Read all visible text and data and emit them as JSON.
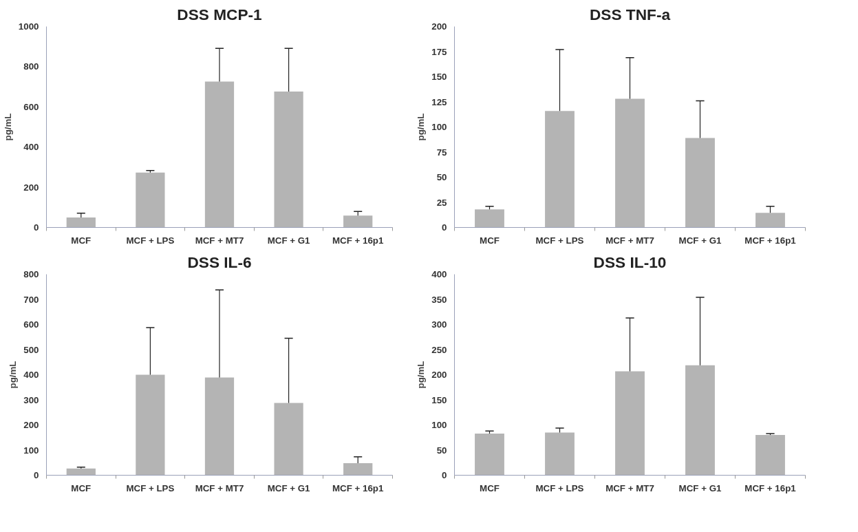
{
  "chart_data": [
    {
      "type": "bar",
      "title": "DSS MCP-1",
      "ylabel": "pg/mL",
      "categories": [
        "MCF",
        "MCF + LPS",
        "MCF + MT7",
        "MCF + G1",
        "MCF + 16p1"
      ],
      "values": [
        50,
        273,
        726,
        676,
        59
      ],
      "errors": [
        [
          50,
          71
        ],
        [
          273,
          283
        ],
        [
          726,
          891
        ],
        [
          676,
          891
        ],
        [
          59,
          80
        ]
      ],
      "color": "#b4b4b4",
      "ylim": [
        0,
        1000
      ],
      "yticks": [
        0,
        200,
        400,
        600,
        800,
        1000
      ],
      "grid": false
    },
    {
      "type": "bar",
      "title": "DSS TNF-a",
      "ylabel": "pg/mL",
      "categories": [
        "MCF",
        "MCF + LPS",
        "MCF + MT7",
        "MCF + G1",
        "MCF + 16p1"
      ],
      "values": [
        18,
        116,
        128,
        89,
        14.5
      ],
      "errors": [
        [
          18,
          21
        ],
        [
          116,
          177
        ],
        [
          128,
          169
        ],
        [
          89,
          126
        ],
        [
          14.5,
          21
        ]
      ],
      "color": "#b4b4b4",
      "ylim": [
        0,
        200
      ],
      "yticks": [
        0,
        25,
        50,
        75,
        100,
        125,
        150,
        175,
        200
      ],
      "grid": false
    },
    {
      "type": "bar",
      "title": "DSS IL-6",
      "ylabel": "pg/mL",
      "categories": [
        "MCF",
        "MCF + LPS",
        "MCF + MT7",
        "MCF + G1",
        "MCF + 16p1"
      ],
      "values": [
        27,
        400,
        389,
        288,
        48
      ],
      "errors": [
        [
          27,
          32
        ],
        [
          400,
          588
        ],
        [
          389,
          738
        ],
        [
          288,
          545
        ],
        [
          48,
          73
        ]
      ],
      "color": "#b4b4b4",
      "ylim": [
        0,
        800
      ],
      "yticks": [
        0,
        100,
        200,
        300,
        400,
        500,
        600,
        700,
        800
      ],
      "grid": false
    },
    {
      "type": "bar",
      "title": "DSS IL-10",
      "ylabel": "pg/mL",
      "categories": [
        "MCF",
        "MCF + LPS",
        "MCF + MT7",
        "MCF + G1",
        "MCF + 16p1"
      ],
      "values": [
        83,
        85,
        207,
        219,
        80
      ],
      "errors": [
        [
          83,
          88
        ],
        [
          85,
          94
        ],
        [
          207,
          313
        ],
        [
          219,
          354
        ],
        [
          80,
          83
        ]
      ],
      "color": "#b4b4b4",
      "ylim": [
        0,
        400
      ],
      "yticks": [
        0,
        50,
        100,
        150,
        200,
        250,
        300,
        350,
        400
      ],
      "grid": false
    }
  ]
}
